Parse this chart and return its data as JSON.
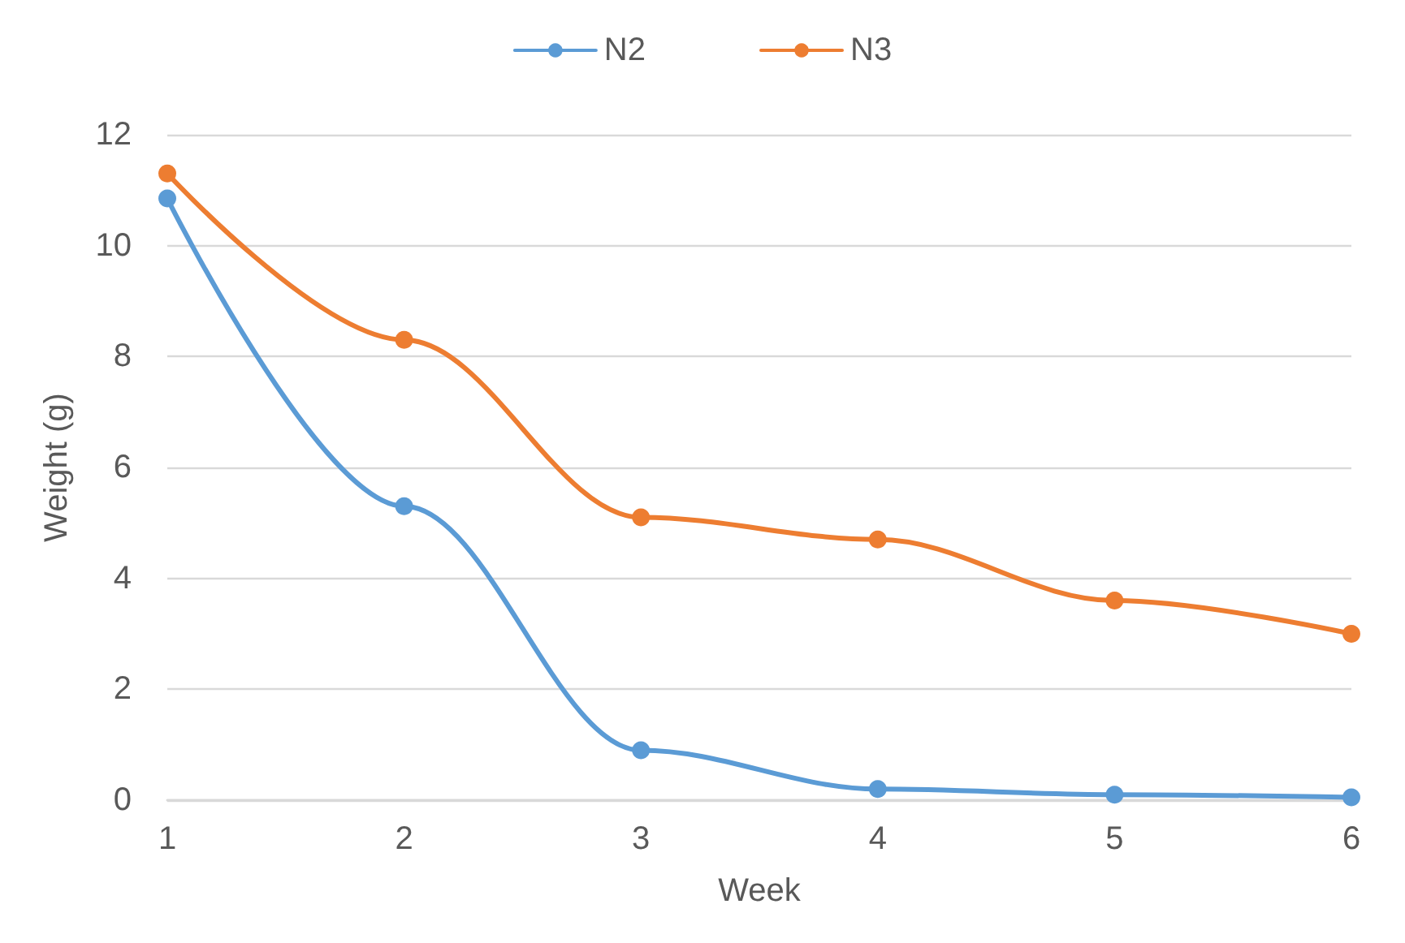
{
  "chart_data": {
    "type": "line",
    "xlabel": "Week",
    "ylabel": "Weight (g)",
    "x": [
      1,
      2,
      3,
      4,
      5,
      6
    ],
    "series": [
      {
        "name": "N2",
        "color": "#5b9bd5",
        "values": [
          10.85,
          5.3,
          0.9,
          0.2,
          0.1,
          0.05
        ]
      },
      {
        "name": "N3",
        "color": "#ed7d31",
        "values": [
          11.3,
          8.3,
          5.1,
          4.7,
          3.6,
          3.0
        ]
      }
    ],
    "xlim": [
      1,
      6
    ],
    "xticks": [
      1,
      2,
      3,
      4,
      5,
      6
    ],
    "ylim": [
      0,
      12
    ],
    "yticks": [
      0,
      2,
      4,
      6,
      8,
      10,
      12
    ],
    "grid": "y",
    "legend": "top",
    "marker": "circle",
    "line_style": "solid"
  }
}
